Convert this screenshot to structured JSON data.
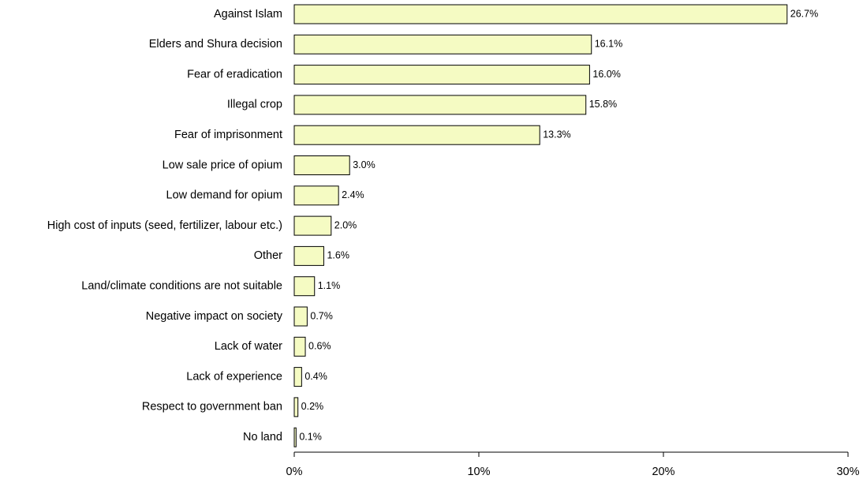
{
  "chart_data": {
    "type": "bar",
    "orientation": "horizontal",
    "categories": [
      "Against Islam",
      "Elders and Shura decision",
      "Fear of eradication",
      "Illegal crop",
      "Fear of imprisonment",
      "Low sale price of opium",
      "Low demand for opium",
      "High cost of inputs (seed, fertilizer, labour etc.)",
      "Other",
      "Land/climate conditions are not suitable",
      "Negative impact on society",
      "Lack of water",
      "Lack of experience",
      "Respect to government ban",
      "No land"
    ],
    "values": [
      26.7,
      16.1,
      16.0,
      15.8,
      13.3,
      3.0,
      2.4,
      2.0,
      1.6,
      1.1,
      0.7,
      0.6,
      0.4,
      0.2,
      0.1
    ],
    "value_labels": [
      "26.7%",
      "16.1%",
      "16.0%",
      "15.8%",
      "13.3%",
      "3.0%",
      "2.4%",
      "2.0%",
      "1.6%",
      "1.1%",
      "0.7%",
      "0.6%",
      "0.4%",
      "0.2%",
      "0.1%"
    ],
    "color": "#f5fbc3",
    "xlim": [
      0,
      30
    ],
    "xticks": [
      {
        "value": 0,
        "label": "0%"
      },
      {
        "value": 10,
        "label": "10%"
      },
      {
        "value": 20,
        "label": "20%"
      },
      {
        "value": 30,
        "label": "30%"
      }
    ]
  }
}
